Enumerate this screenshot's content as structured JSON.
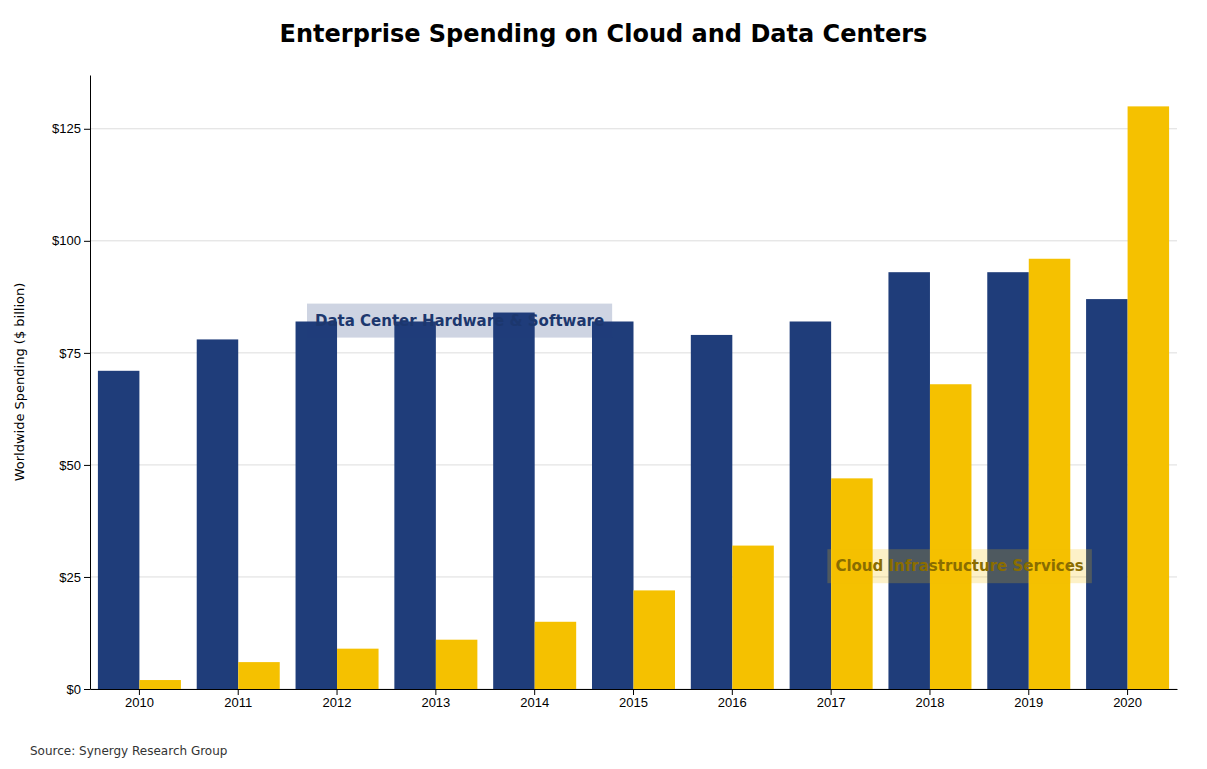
{
  "chart_data": {
    "type": "bar",
    "title": "Enterprise Spending on Cloud and Data Centers",
    "ylabel": "Worldwide Spending ($ billion)",
    "source": "Source: Synergy Research Group",
    "categories": [
      "2010",
      "2011",
      "2012",
      "2013",
      "2014",
      "2015",
      "2016",
      "2017",
      "2018",
      "2019",
      "2020"
    ],
    "series": [
      {
        "name": "Data Center Hardware & Software",
        "color": "#1F3D7A",
        "values": [
          71,
          78,
          82,
          82,
          84,
          82,
          79,
          82,
          93,
          93,
          87
        ]
      },
      {
        "name": "Cloud Infrastructure Services",
        "color": "#F5C100",
        "values": [
          2,
          6,
          9,
          11,
          15,
          22,
          32,
          47,
          68,
          96,
          130
        ]
      }
    ],
    "ylim": [
      0,
      137
    ],
    "yticks": [
      {
        "value": 0,
        "label": "$0"
      },
      {
        "value": 25,
        "label": "$25"
      },
      {
        "value": 50,
        "label": "$50"
      },
      {
        "value": 75,
        "label": "$75"
      },
      {
        "value": 100,
        "label": "$100"
      },
      {
        "value": 125,
        "label": "$125"
      }
    ],
    "grid": true
  }
}
